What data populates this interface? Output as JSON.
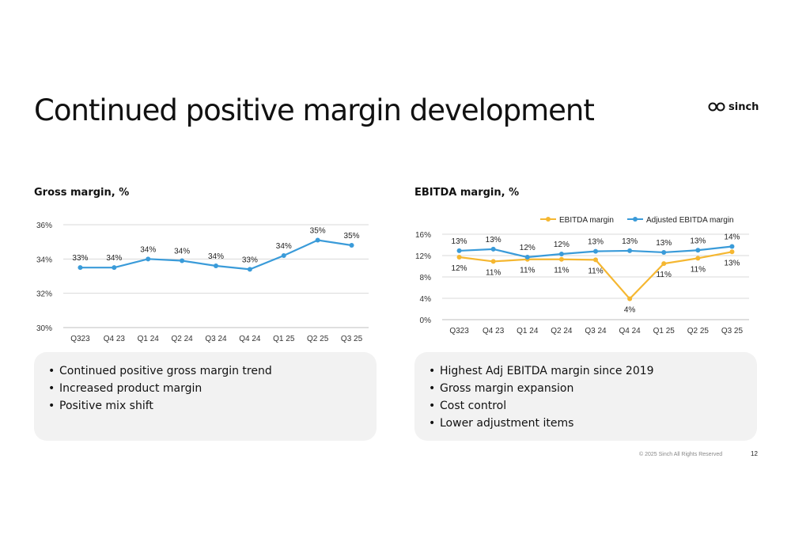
{
  "page": {
    "title": "Continued positive margin development",
    "logo_text": "sinch",
    "footer_copyright": "© 2025 Sinch All Rights Reserved",
    "page_number": "12"
  },
  "colors": {
    "blue": "#3a9bd9",
    "yellow": "#f5b731",
    "grid": "#d9d9d9",
    "axis_text": "#333333"
  },
  "gross_panel": {
    "bullets": [
      "Continued positive gross margin trend",
      "Increased product margin",
      "Positive mix shift"
    ]
  },
  "ebitda_panel": {
    "bullets": [
      "Highest Adj EBITDA margin since 2019",
      "Gross margin expansion",
      "Cost control",
      "Lower adjustment items"
    ]
  },
  "chart_data": [
    {
      "type": "line",
      "title": "Gross margin, %",
      "categories": [
        "Q323",
        "Q4 23",
        "Q1 24",
        "Q2 24",
        "Q3 24",
        "Q4 24",
        "Q1 25",
        "Q2 25",
        "Q3 25"
      ],
      "ylim": [
        30,
        36
      ],
      "yticks": [
        30,
        32,
        34,
        36
      ],
      "ytick_labels": [
        "30%",
        "32%",
        "34%",
        "36%"
      ],
      "grid": true,
      "legend": "none",
      "series": [
        {
          "name": "Gross margin",
          "values": [
            33.5,
            33.5,
            34.0,
            33.9,
            33.6,
            33.4,
            34.2,
            35.1,
            34.8
          ],
          "labels": [
            "33%",
            "34%",
            "34%",
            "34%",
            "34%",
            "33%",
            "34%",
            "35%",
            "35%"
          ]
        }
      ]
    },
    {
      "type": "line",
      "title": "EBITDA margin, %",
      "categories": [
        "Q323",
        "Q4 23",
        "Q1 24",
        "Q2 24",
        "Q3 24",
        "Q4 24",
        "Q1 25",
        "Q2 25",
        "Q3 25"
      ],
      "ylim": [
        0,
        16
      ],
      "yticks": [
        0,
        4,
        8,
        12,
        16
      ],
      "ytick_labels": [
        "0%",
        "4%",
        "8%",
        "12%",
        "16%"
      ],
      "grid": true,
      "legend": "top-right",
      "series": [
        {
          "name": "EBITDA margin",
          "values": [
            11.7,
            10.9,
            11.3,
            11.3,
            11.2,
            3.9,
            10.5,
            11.5,
            12.7
          ],
          "labels": [
            "12%",
            "11%",
            "11%",
            "11%",
            "11%",
            "4%",
            "11%",
            "11%",
            "13%"
          ]
        },
        {
          "name": "Adjusted EBITDA margin",
          "values": [
            12.9,
            13.2,
            11.7,
            12.3,
            12.8,
            12.9,
            12.6,
            13.0,
            13.7
          ],
          "labels": [
            "13%",
            "13%",
            "12%",
            "12%",
            "13%",
            "13%",
            "13%",
            "13%",
            "14%"
          ]
        }
      ]
    }
  ]
}
